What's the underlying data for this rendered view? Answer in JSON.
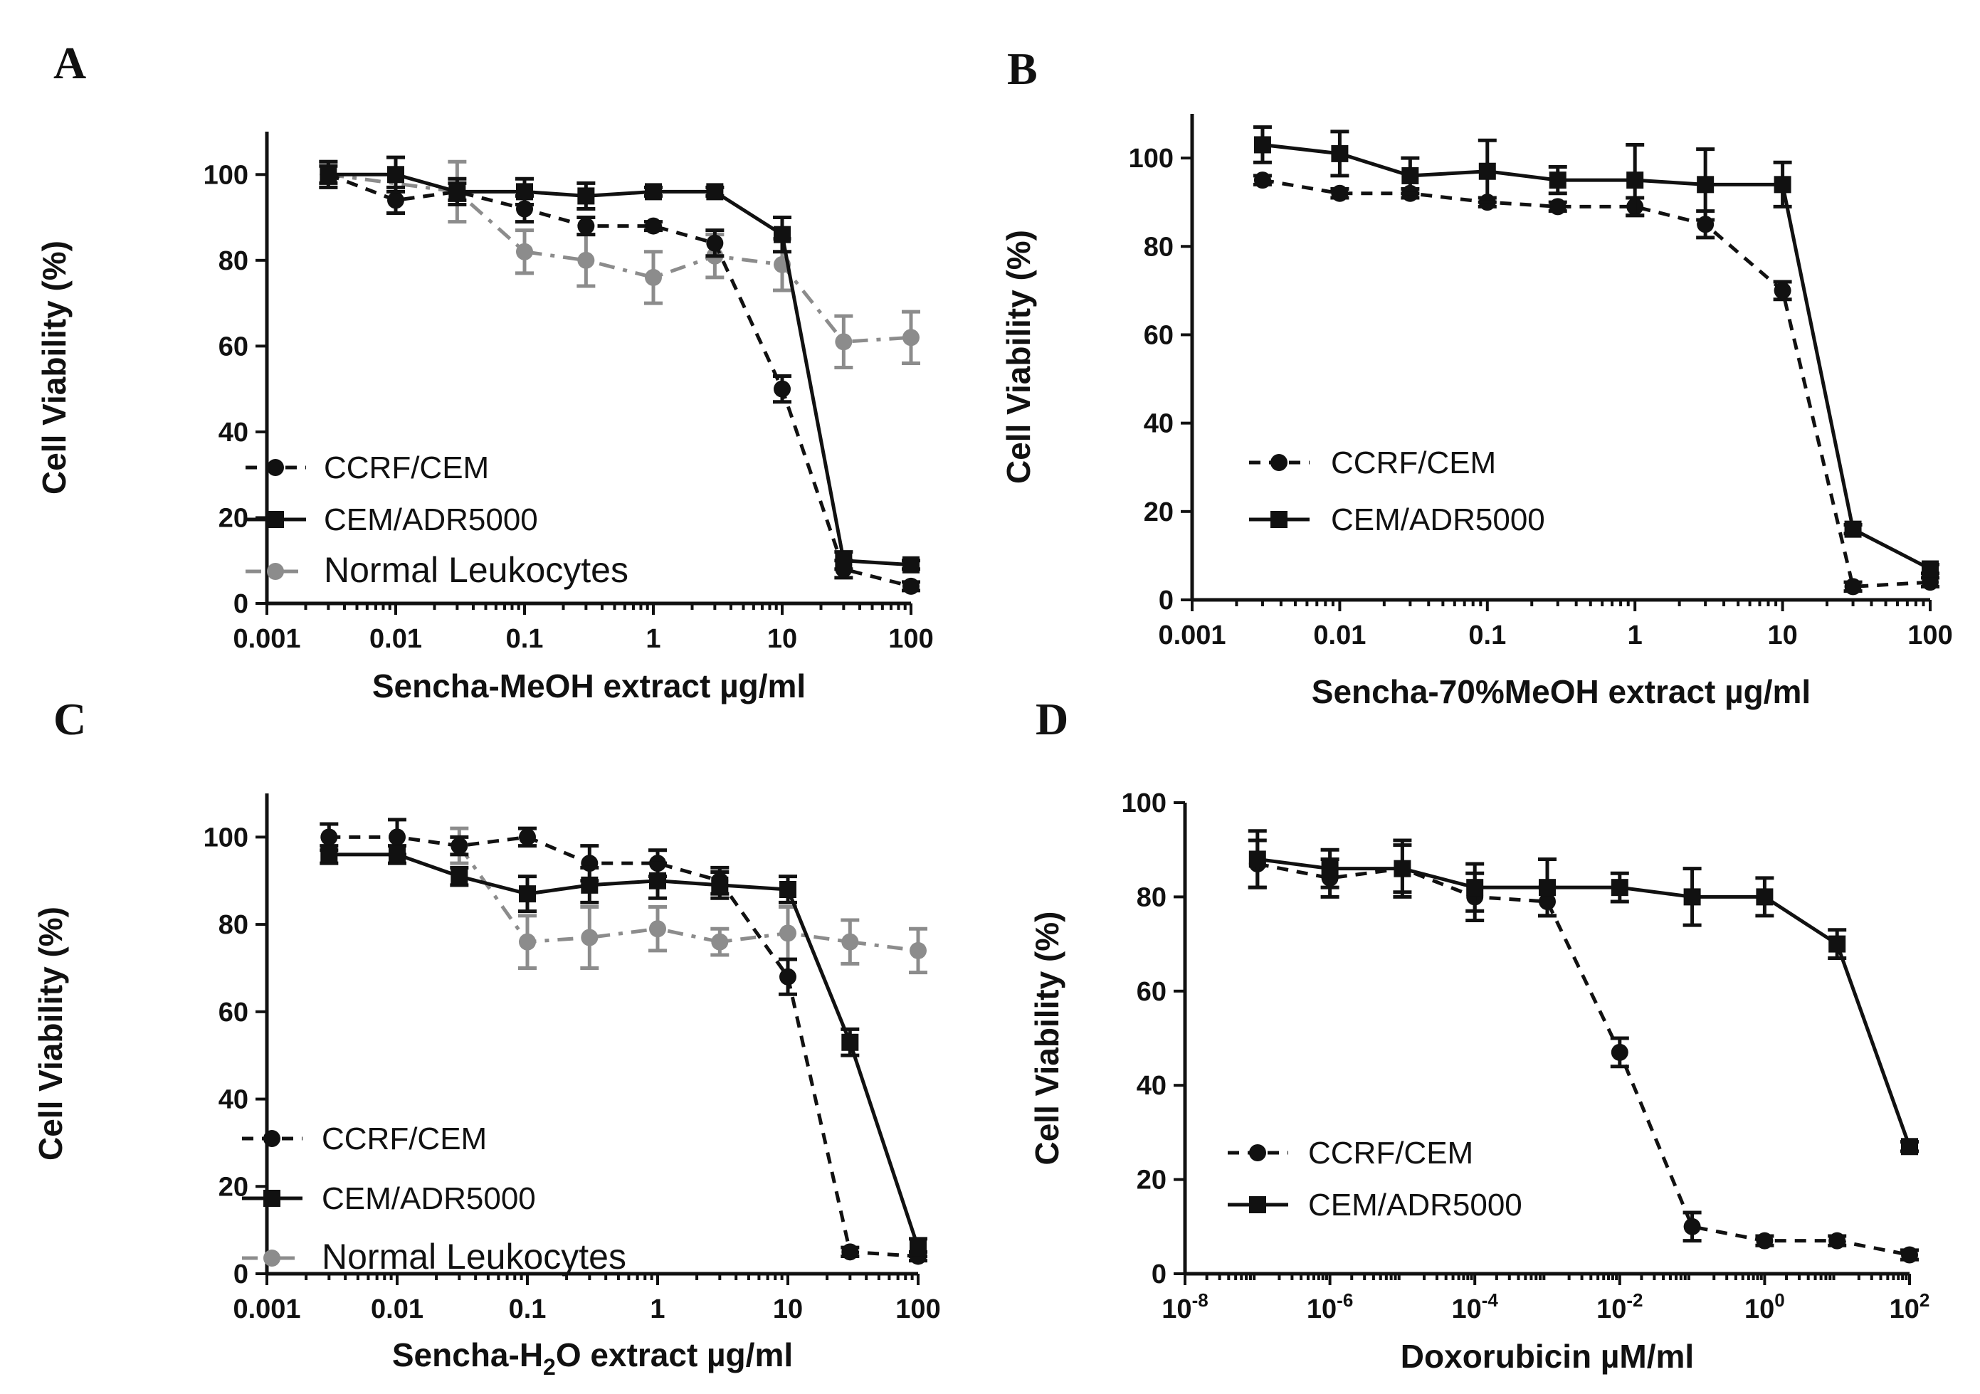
{
  "chart_data": [
    {
      "id": "A",
      "panel_label": "A",
      "type": "line",
      "xscale": "log",
      "xlim": [
        0.001,
        100
      ],
      "ylim": [
        0,
        110
      ],
      "x_ticks": [
        {
          "v": 0.001,
          "label": "0.001"
        },
        {
          "v": 0.01,
          "label": "0.01"
        },
        {
          "v": 0.1,
          "label": "0.1"
        },
        {
          "v": 1,
          "label": "1"
        },
        {
          "v": 10,
          "label": "10"
        },
        {
          "v": 100,
          "label": "100"
        }
      ],
      "y_ticks": [
        0,
        20,
        40,
        60,
        80,
        100
      ],
      "ylabel": "Cell Viability (%)",
      "xlabel": "Sencha-MeOH extract µg/ml",
      "x": [
        0.003,
        0.01,
        0.03,
        0.1,
        0.3,
        1,
        3,
        10,
        30,
        100
      ],
      "series": [
        {
          "name": "CCRF/CEM",
          "style": "dashed",
          "marker": "circle",
          "color": "#111111",
          "values": [
            100,
            94,
            96,
            92,
            88,
            88,
            84,
            50,
            8,
            4
          ],
          "errors": [
            2,
            3,
            2,
            3,
            2,
            1,
            3,
            3,
            2,
            1
          ]
        },
        {
          "name": "CEM/ADR5000",
          "style": "solid",
          "marker": "square",
          "color": "#111111",
          "values": [
            100,
            100,
            96,
            96,
            95,
            96,
            96,
            86,
            10,
            9
          ],
          "errors": [
            3,
            4,
            3,
            3,
            3,
            1,
            1,
            4,
            2,
            1
          ]
        },
        {
          "name": "Normal Leukocytes",
          "style": "dashdot",
          "marker": "circle",
          "color": "#8c8c8c",
          "values": [
            100,
            null,
            96,
            82,
            80,
            76,
            81,
            79,
            61,
            62
          ],
          "errors": [
            3,
            null,
            7,
            5,
            6,
            6,
            5,
            6,
            6,
            6
          ]
        }
      ]
    },
    {
      "id": "B",
      "panel_label": "B",
      "type": "line",
      "xscale": "log",
      "xlim": [
        0.001,
        100
      ],
      "ylim": [
        0,
        110
      ],
      "x_ticks": [
        {
          "v": 0.001,
          "label": "0.001"
        },
        {
          "v": 0.01,
          "label": "0.01"
        },
        {
          "v": 0.1,
          "label": "0.1"
        },
        {
          "v": 1,
          "label": "1"
        },
        {
          "v": 10,
          "label": "10"
        },
        {
          "v": 100,
          "label": "100"
        }
      ],
      "y_ticks": [
        0,
        20,
        40,
        60,
        80,
        100
      ],
      "ylabel": "Cell Viability (%)",
      "xlabel": "Sencha-70%MeOH extract µg/ml",
      "x": [
        0.003,
        0.01,
        0.03,
        0.1,
        0.3,
        1,
        3,
        10,
        30,
        100
      ],
      "series": [
        {
          "name": "CCRF/CEM",
          "style": "dashed",
          "marker": "circle",
          "color": "#111111",
          "values": [
            95,
            92,
            92,
            90,
            89,
            89,
            85,
            70,
            3,
            4
          ],
          "errors": [
            1,
            1,
            1,
            1,
            1,
            2,
            3,
            2,
            1,
            1
          ]
        },
        {
          "name": "CEM/ADR5000",
          "style": "solid",
          "marker": "square",
          "color": "#111111",
          "values": [
            103,
            101,
            96,
            97,
            95,
            95,
            94,
            94,
            16,
            7
          ],
          "errors": [
            4,
            5,
            4,
            7,
            3,
            8,
            8,
            5,
            1,
            1
          ]
        }
      ]
    },
    {
      "id": "C",
      "panel_label": "C",
      "type": "line",
      "xscale": "log",
      "xlim": [
        0.001,
        100
      ],
      "ylim": [
        0,
        110
      ],
      "x_ticks": [
        {
          "v": 0.001,
          "label": "0.001"
        },
        {
          "v": 0.01,
          "label": "0.01"
        },
        {
          "v": 0.1,
          "label": "0.1"
        },
        {
          "v": 1,
          "label": "1"
        },
        {
          "v": 10,
          "label": "10"
        },
        {
          "v": 100,
          "label": "100"
        }
      ],
      "y_ticks": [
        0,
        20,
        40,
        60,
        80,
        100
      ],
      "ylabel": "Cell Viability (%)",
      "xlabel_parts": [
        "Sencha-H",
        "2",
        "O extract µg/ml"
      ],
      "x": [
        0.003,
        0.01,
        0.03,
        0.1,
        0.3,
        1,
        3,
        10,
        30,
        100
      ],
      "series": [
        {
          "name": "CCRF/CEM",
          "style": "dashed",
          "marker": "circle",
          "color": "#111111",
          "values": [
            100,
            100,
            98,
            100,
            94,
            94,
            90,
            68,
            5,
            4
          ],
          "errors": [
            3,
            4,
            2,
            2,
            4,
            3,
            3,
            4,
            1,
            1
          ]
        },
        {
          "name": "CEM/ADR5000",
          "style": "solid",
          "marker": "square",
          "color": "#111111",
          "values": [
            96,
            96,
            91,
            87,
            89,
            90,
            89,
            88,
            53,
            6
          ],
          "errors": [
            2,
            2,
            2,
            4,
            4,
            4,
            3,
            3,
            3,
            2
          ]
        },
        {
          "name": "Normal Leukocytes",
          "style": "dashdot",
          "marker": "circle",
          "color": "#8c8c8c",
          "values": [
            null,
            null,
            98,
            76,
            77,
            79,
            76,
            78,
            76,
            74
          ],
          "errors": [
            null,
            null,
            4,
            6,
            7,
            5,
            3,
            6,
            5,
            5
          ]
        }
      ]
    },
    {
      "id": "D",
      "panel_label": "D",
      "type": "line",
      "xscale": "log",
      "xlim": [
        1e-08,
        100
      ],
      "ylim": [
        0,
        100
      ],
      "x_ticks": [
        {
          "v": 1e-08,
          "base": "10",
          "exp": "-8"
        },
        {
          "v": 1e-06,
          "base": "10",
          "exp": "-6"
        },
        {
          "v": 0.0001,
          "base": "10",
          "exp": "-4"
        },
        {
          "v": 0.01,
          "base": "10",
          "exp": "-2"
        },
        {
          "v": 1,
          "base": "10",
          "exp": "0"
        },
        {
          "v": 100,
          "base": "10",
          "exp": "2"
        }
      ],
      "y_ticks": [
        0,
        20,
        40,
        60,
        80,
        100
      ],
      "ylabel": "Cell Viability (%)",
      "xlabel": "Doxorubicin µM/ml",
      "x": [
        1e-07,
        1e-06,
        1e-05,
        0.0001,
        0.001,
        0.01,
        0.1,
        1,
        10,
        100
      ],
      "series": [
        {
          "name": "CCRF/CEM",
          "style": "dashed",
          "marker": "circle",
          "color": "#111111",
          "values": [
            87,
            84,
            86,
            80,
            79,
            47,
            10,
            7,
            7,
            4
          ],
          "errors": [
            5,
            4,
            5,
            5,
            3,
            3,
            3,
            1,
            1,
            1
          ]
        },
        {
          "name": "CEM/ADR5000",
          "style": "solid",
          "marker": "square",
          "color": "#111111",
          "values": [
            88,
            86,
            86,
            82,
            82,
            82,
            80,
            80,
            70,
            27
          ],
          "errors": [
            6,
            4,
            6,
            5,
            6,
            3,
            6,
            4,
            3,
            1
          ]
        }
      ]
    }
  ]
}
